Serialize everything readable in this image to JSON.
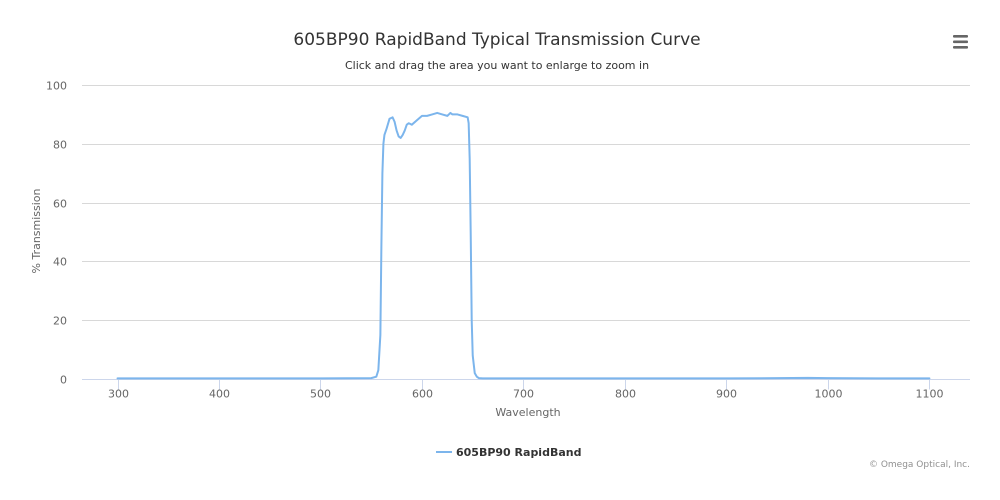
{
  "chart_data": {
    "type": "line",
    "title": "605BP90 RapidBand Typical Transmission Curve",
    "subtitle": "Click and drag the area you want to enlarge to zoom in",
    "xlabel": "Wavelength",
    "ylabel": "% Transmission",
    "xlim": [
      265,
      1140
    ],
    "ylim": [
      0,
      100
    ],
    "x_ticks": [
      300,
      400,
      500,
      600,
      700,
      800,
      900,
      1000,
      1100
    ],
    "y_ticks": [
      0,
      20,
      40,
      60,
      80,
      100
    ],
    "x_tick_labels": [
      "300",
      "400",
      "500",
      "600",
      "700",
      "800",
      "900",
      "1000",
      "1100"
    ],
    "y_tick_labels": [
      "0",
      "20",
      "40",
      "60",
      "80",
      "100"
    ],
    "grid": "horizontal",
    "legend_position": "bottom-center",
    "series": [
      {
        "name": "605BP90 RapidBand",
        "color": "#7cb5ec",
        "x": [
          300,
          400,
          500,
          550,
          555,
          557,
          559,
          560,
          561,
          562,
          563,
          565,
          568,
          571,
          573,
          575,
          577,
          579,
          581,
          583,
          585,
          587,
          590,
          595,
          600,
          605,
          610,
          615,
          620,
          625,
          628,
          630,
          635,
          640,
          645,
          646,
          647,
          648,
          649,
          650,
          652,
          654,
          656,
          660,
          700,
          800,
          900,
          950,
          980,
          1000,
          1050,
          1100
        ],
        "y": [
          0.2,
          0.2,
          0.2,
          0.3,
          0.8,
          3,
          15,
          45,
          70,
          80,
          83,
          85,
          88.5,
          89,
          87.5,
          84.5,
          82.5,
          82,
          83,
          84.5,
          86.5,
          87,
          86.5,
          88,
          89.5,
          89.5,
          90,
          90.5,
          90,
          89.5,
          90.5,
          90,
          90,
          89.5,
          89,
          87,
          75,
          50,
          20,
          8,
          2,
          0.8,
          0.3,
          0.2,
          0.2,
          0.2,
          0.2,
          0.3,
          0.4,
          0.3,
          0.2,
          0.2
        ]
      }
    ]
  },
  "ui": {
    "menu_icon": "hamburger-menu-icon",
    "credits": "© Omega Optical, Inc."
  }
}
